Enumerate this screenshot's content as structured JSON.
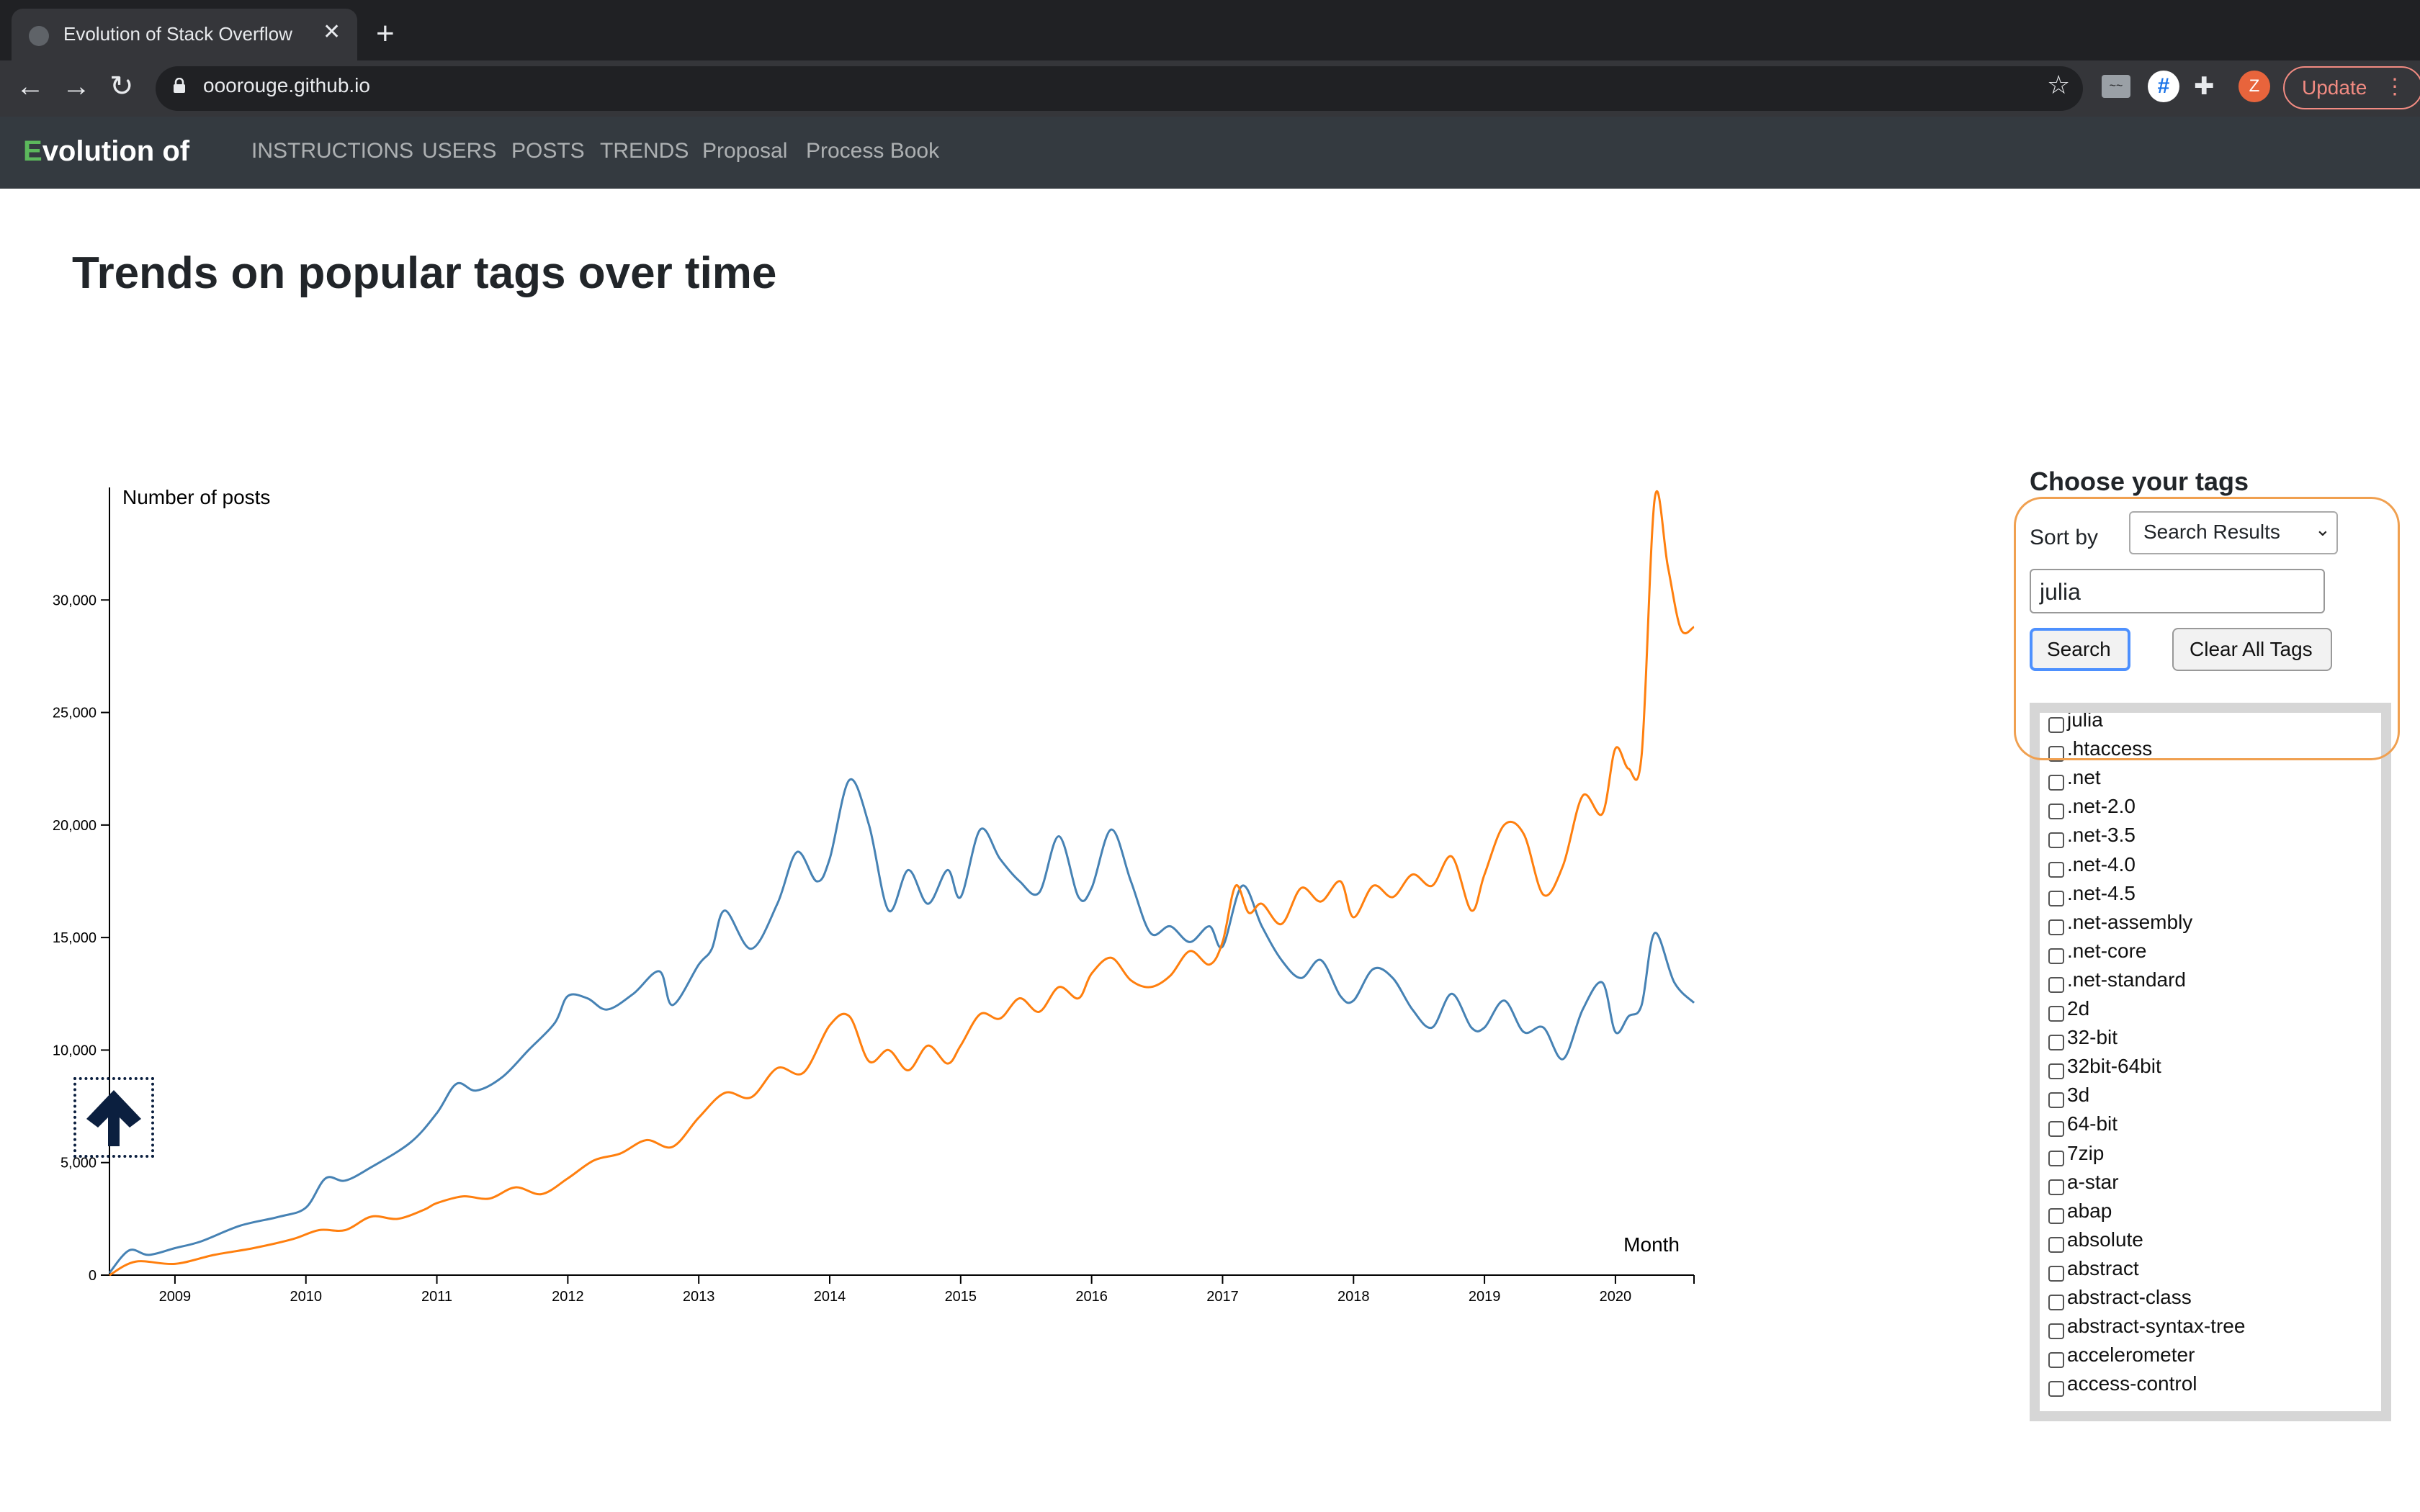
{
  "browser": {
    "tab_title": "Evolution of Stack Overflow",
    "tab_close": "✕",
    "new_tab": "+",
    "url": "ooorouge.github.io",
    "update_label": "Update",
    "update_menu": "⋮",
    "avatar_letter": "Z",
    "ext_hash": "#",
    "ext_ss": "~~"
  },
  "navbar": {
    "brand_letter": "E",
    "brand_rest": "volution of",
    "links": [
      "INSTRUCTIONS",
      "USERS",
      "POSTS",
      "TRENDS",
      "Proposal",
      "Process Book"
    ]
  },
  "page": {
    "title": "Trends on popular tags over time"
  },
  "chart_data": {
    "type": "line",
    "ylabel": "Number of posts",
    "xlabel": "Month",
    "ylim": [
      0,
      35000
    ],
    "yticks": [
      0,
      5000,
      10000,
      15000,
      20000,
      25000,
      30000
    ],
    "ytick_labels": [
      "0",
      "5,000",
      "10,000",
      "15,000",
      "20,000",
      "25,000",
      "30,000"
    ],
    "xlim": [
      2008.5,
      2020.6
    ],
    "xticks": [
      2009,
      2010,
      2011,
      2012,
      2013,
      2014,
      2015,
      2016,
      2017,
      2018,
      2019,
      2020
    ],
    "xtick_labels": [
      "2009",
      "2010",
      "2011",
      "2012",
      "2013",
      "2014",
      "2015",
      "2016",
      "2017",
      "2018",
      "2019",
      "2020"
    ],
    "series": [
      {
        "color": "#4682b4",
        "x": [
          2008.5,
          2008.65,
          2008.8,
          2009.0,
          2009.2,
          2009.5,
          2009.8,
          2010.0,
          2010.15,
          2010.3,
          2010.5,
          2010.8,
          2011.0,
          2011.15,
          2011.3,
          2011.5,
          2011.7,
          2011.9,
          2012.0,
          2012.15,
          2012.3,
          2012.5,
          2012.7,
          2012.8,
          2013.0,
          2013.1,
          2013.2,
          2013.4,
          2013.6,
          2013.75,
          2013.9,
          2014.0,
          2014.15,
          2014.3,
          2014.45,
          2014.6,
          2014.75,
          2014.9,
          2015.0,
          2015.15,
          2015.3,
          2015.45,
          2015.6,
          2015.75,
          2015.9,
          2016.0,
          2016.15,
          2016.3,
          2016.45,
          2016.6,
          2016.75,
          2016.9,
          2017.0,
          2017.15,
          2017.3,
          2017.45,
          2017.6,
          2017.75,
          2017.9,
          2018.0,
          2018.15,
          2018.3,
          2018.45,
          2018.6,
          2018.75,
          2018.9,
          2019.0,
          2019.15,
          2019.3,
          2019.45,
          2019.6,
          2019.75,
          2019.9,
          2020.0,
          2020.1,
          2020.2,
          2020.3,
          2020.45,
          2020.6
        ],
        "values": [
          100,
          1100,
          900,
          1200,
          1500,
          2200,
          2600,
          3000,
          4300,
          4200,
          4800,
          5900,
          7200,
          8500,
          8200,
          8800,
          10000,
          11200,
          12400,
          12300,
          11800,
          12500,
          13500,
          12000,
          13800,
          14500,
          16200,
          14500,
          16500,
          18800,
          17500,
          18500,
          22000,
          20000,
          16200,
          18000,
          16500,
          18000,
          16800,
          19800,
          18500,
          17500,
          17000,
          19500,
          16800,
          17200,
          19800,
          17500,
          15200,
          15500,
          14800,
          15500,
          14600,
          17300,
          15500,
          14000,
          13200,
          14000,
          12400,
          12200,
          13600,
          13200,
          11800,
          11000,
          12500,
          11000,
          11000,
          12200,
          10800,
          11000,
          9600,
          11800,
          13000,
          10800,
          11500,
          12000,
          15200,
          13000,
          12100
        ]
      },
      {
        "color": "#ff7f0e",
        "x": [
          2008.5,
          2008.7,
          2009.0,
          2009.3,
          2009.6,
          2009.9,
          2010.1,
          2010.3,
          2010.5,
          2010.7,
          2010.9,
          2011.0,
          2011.2,
          2011.4,
          2011.6,
          2011.8,
          2012.0,
          2012.2,
          2012.4,
          2012.6,
          2012.8,
          2013.0,
          2013.2,
          2013.4,
          2013.6,
          2013.8,
          2014.0,
          2014.15,
          2014.3,
          2014.45,
          2014.6,
          2014.75,
          2014.9,
          2015.0,
          2015.15,
          2015.3,
          2015.45,
          2015.6,
          2015.75,
          2015.9,
          2016.0,
          2016.15,
          2016.3,
          2016.45,
          2016.6,
          2016.75,
          2016.9,
          2017.0,
          2017.1,
          2017.2,
          2017.3,
          2017.45,
          2017.6,
          2017.75,
          2017.9,
          2018.0,
          2018.15,
          2018.3,
          2018.45,
          2018.6,
          2018.75,
          2018.9,
          2019.0,
          2019.15,
          2019.3,
          2019.45,
          2019.6,
          2019.75,
          2019.9,
          2020.0,
          2020.1,
          2020.2,
          2020.3,
          2020.4,
          2020.5,
          2020.6
        ],
        "values": [
          0,
          600,
          500,
          900,
          1200,
          1600,
          2000,
          2000,
          2600,
          2500,
          2900,
          3200,
          3500,
          3400,
          3900,
          3600,
          4300,
          5100,
          5400,
          6000,
          5700,
          7000,
          8100,
          7900,
          9200,
          9000,
          11100,
          11500,
          9500,
          10000,
          9100,
          10200,
          9400,
          10200,
          11600,
          11400,
          12300,
          11700,
          12800,
          12300,
          13400,
          14100,
          13100,
          12800,
          13300,
          14400,
          13800,
          14800,
          17300,
          16100,
          16500,
          15600,
          17200,
          16600,
          17500,
          15900,
          17300,
          16800,
          17800,
          17300,
          18600,
          16200,
          17800,
          20000,
          19600,
          16900,
          18200,
          21300,
          20500,
          23400,
          22500,
          23100,
          34500,
          31500,
          28700,
          28800
        ]
      }
    ]
  },
  "tag_panel": {
    "title": "Choose your tags",
    "sort_label": "Sort by",
    "sort_value": "Search Results",
    "search_value": "julia",
    "search_button": "Search",
    "clear_button": "Clear All Tags",
    "tags": [
      "julia",
      ".htaccess",
      ".net",
      ".net-2.0",
      ".net-3.5",
      ".net-4.0",
      ".net-4.5",
      ".net-assembly",
      ".net-core",
      ".net-standard",
      "2d",
      "32-bit",
      "32bit-64bit",
      "3d",
      "64-bit",
      "7zip",
      "a-star",
      "abap",
      "absolute",
      "abstract",
      "abstract-class",
      "abstract-syntax-tree",
      "accelerometer",
      "access-control"
    ]
  }
}
